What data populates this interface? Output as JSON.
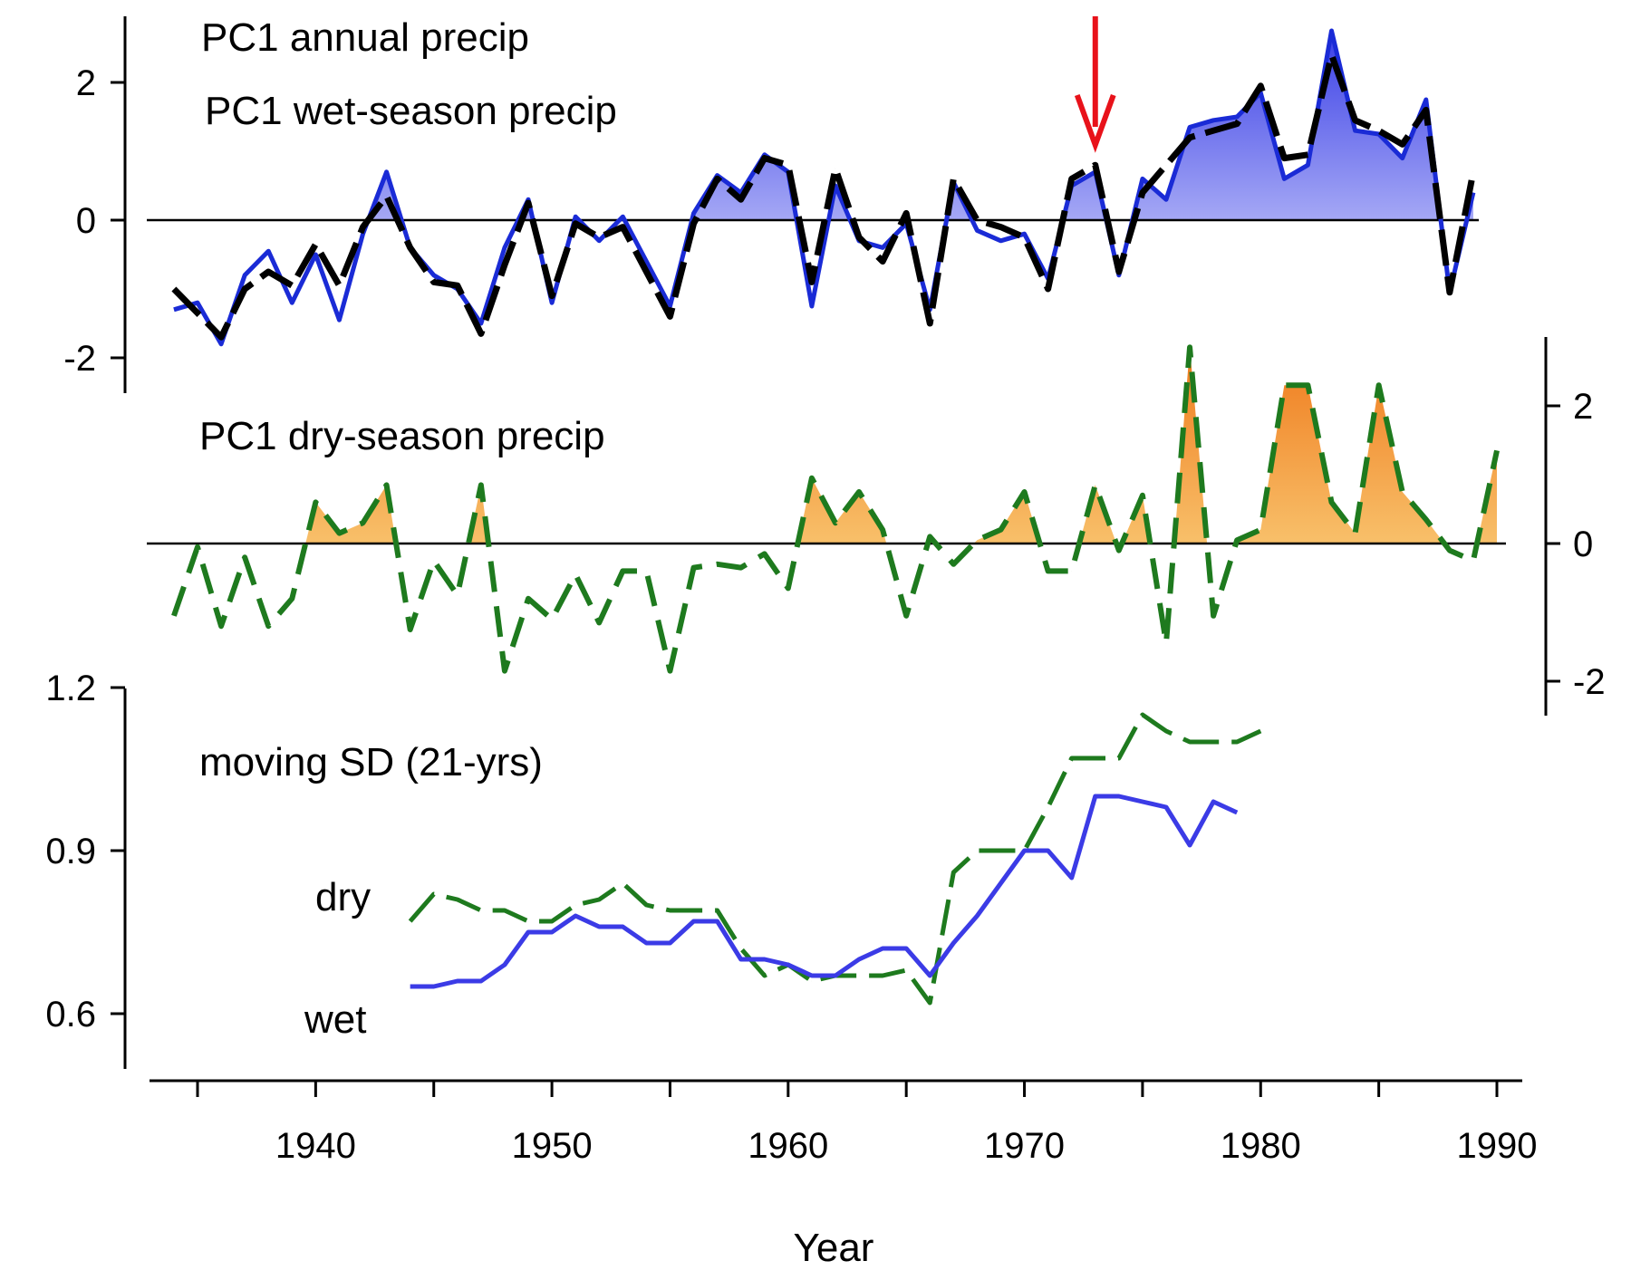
{
  "chart_data": [
    {
      "panel": "top",
      "type": "line",
      "title": "PC1 annual precip",
      "title_color": "#000000",
      "subtitle": "PC1 wet-season precip",
      "subtitle_color": "#1a3ccc",
      "left_axis_ticks": [
        -2,
        0,
        2
      ],
      "left_axis_tick_labels": [
        "-2",
        "0",
        "2"
      ],
      "ylim": [
        -2.4,
        2.9
      ],
      "zero_line": true,
      "fill_positive_series": "PC1 wet-season precip",
      "fill_color": "#3a3fe6",
      "marker": {
        "x": 1973,
        "direction": "down",
        "color": "#e8121a",
        "description": "red arrow"
      },
      "x": [
        1934,
        1935,
        1936,
        1937,
        1938,
        1939,
        1940,
        1941,
        1942,
        1943,
        1944,
        1945,
        1946,
        1947,
        1948,
        1949,
        1950,
        1951,
        1952,
        1953,
        1954,
        1955,
        1956,
        1957,
        1958,
        1959,
        1960,
        1961,
        1962,
        1963,
        1964,
        1965,
        1966,
        1967,
        1968,
        1969,
        1970,
        1971,
        1972,
        1973,
        1974,
        1975,
        1976,
        1977,
        1978,
        1979,
        1980,
        1981,
        1982,
        1983,
        1984,
        1985,
        1986,
        1987,
        1988,
        1989
      ],
      "series": [
        {
          "name": "PC1 wet-season precip",
          "color": "#1a2bd6",
          "style": "solid",
          "values": [
            -1.3,
            -1.2,
            -1.8,
            -0.8,
            -0.45,
            -1.2,
            -0.5,
            -1.45,
            -0.2,
            0.7,
            -0.4,
            -0.8,
            -1.0,
            -1.5,
            -0.4,
            0.3,
            -1.2,
            0.05,
            -0.3,
            0.05,
            -0.6,
            -1.25,
            0.1,
            0.65,
            0.4,
            0.95,
            0.7,
            -1.25,
            0.5,
            -0.3,
            -0.4,
            -0.05,
            -1.3,
            0.55,
            -0.15,
            -0.3,
            -0.2,
            -0.85,
            0.5,
            0.7,
            -0.8,
            0.6,
            0.3,
            1.35,
            1.45,
            1.5,
            1.85,
            0.6,
            0.8,
            2.75,
            1.3,
            1.25,
            0.9,
            1.75,
            -1.05,
            0.4
          ]
        },
        {
          "name": "PC1 annual precip",
          "color": "#000000",
          "style": "dashed",
          "values": [
            -1.0,
            -1.35,
            -1.7,
            -1.0,
            -0.75,
            -0.95,
            -0.35,
            -0.95,
            -0.1,
            0.35,
            -0.4,
            -0.9,
            -0.95,
            -1.65,
            -0.65,
            0.25,
            -1.1,
            -0.05,
            -0.25,
            -0.1,
            -0.75,
            -1.4,
            -0.05,
            0.6,
            0.3,
            0.9,
            0.8,
            -0.9,
            0.75,
            -0.25,
            -0.6,
            0.1,
            -1.5,
            0.6,
            0.0,
            -0.1,
            -0.25,
            -1.0,
            0.6,
            0.8,
            -0.75,
            0.4,
            0.8,
            1.2,
            1.3,
            1.4,
            1.95,
            0.9,
            0.95,
            2.4,
            1.45,
            1.3,
            1.1,
            1.6,
            -1.05,
            0.7
          ]
        }
      ]
    },
    {
      "panel": "middle",
      "type": "area",
      "title": "PC1 dry-season precip",
      "title_color": "#c56a12",
      "right_axis_ticks": [
        -2,
        0,
        2
      ],
      "right_axis_tick_labels": [
        "-2",
        "0",
        "2"
      ],
      "ylim": [
        -2.5,
        3.0
      ],
      "zero_line": true,
      "fill_positive_color": "#f5a23a",
      "x": [
        1934,
        1935,
        1936,
        1937,
        1938,
        1939,
        1940,
        1941,
        1942,
        1943,
        1944,
        1945,
        1946,
        1947,
        1948,
        1949,
        1950,
        1951,
        1952,
        1953,
        1954,
        1955,
        1956,
        1957,
        1958,
        1959,
        1960,
        1961,
        1962,
        1963,
        1964,
        1965,
        1966,
        1967,
        1968,
        1969,
        1970,
        1971,
        1972,
        1973,
        1974,
        1975,
        1976,
        1977,
        1978,
        1979,
        1980,
        1981,
        1982,
        1983,
        1984,
        1985,
        1986,
        1987,
        1988,
        1989,
        1990
      ],
      "series": [
        {
          "name": "PC1 dry-season precip",
          "color": "#1e7a1e",
          "style": "dashed",
          "values": [
            -1.05,
            -0.05,
            -1.2,
            -0.2,
            -1.2,
            -0.8,
            0.6,
            0.15,
            0.3,
            0.85,
            -1.25,
            -0.25,
            -0.75,
            0.85,
            -1.85,
            -0.8,
            -1.1,
            -0.45,
            -1.15,
            -0.4,
            -0.4,
            -1.85,
            -0.35,
            -0.3,
            -0.35,
            -0.15,
            -0.65,
            0.95,
            0.3,
            0.75,
            0.2,
            -1.05,
            0.1,
            -0.3,
            0.05,
            0.2,
            0.75,
            -0.4,
            -0.4,
            0.85,
            -0.1,
            0.7,
            -1.45,
            2.85,
            -1.05,
            0.05,
            0.2,
            2.3,
            2.3,
            0.6,
            0.15,
            2.3,
            0.75,
            0.35,
            -0.1,
            -0.25,
            1.35
          ]
        }
      ]
    },
    {
      "panel": "bottom",
      "type": "line",
      "title": "moving SD (21-yrs)",
      "xlabel": "Year",
      "left_axis_ticks": [
        0.6,
        0.9,
        1.2
      ],
      "left_axis_tick_labels": [
        "0.6",
        "0.9",
        "1.2"
      ],
      "ylim": [
        0.47,
        1.2
      ],
      "xlim": [
        1933,
        1991
      ],
      "x_ticks": [
        1935,
        1940,
        1945,
        1950,
        1955,
        1960,
        1965,
        1970,
        1975,
        1980,
        1985,
        1990
      ],
      "x_tick_labels": [
        "1940",
        "1950",
        "1960",
        "1970",
        "1980",
        "1990"
      ],
      "x_tick_label_values": [
        1940,
        1950,
        1960,
        1970,
        1980,
        1990
      ],
      "series_labels": {
        "dry": "dry",
        "wet": "wet"
      },
      "series": [
        {
          "name": "dry",
          "color": "#1e7a1e",
          "style": "dashed",
          "x": [
            1944,
            1945,
            1946,
            1947,
            1948,
            1949,
            1950,
            1951,
            1952,
            1953,
            1954,
            1955,
            1956,
            1957,
            1958,
            1959,
            1960,
            1961,
            1962,
            1963,
            1964,
            1965,
            1966,
            1967,
            1968,
            1969,
            1970,
            1971,
            1972,
            1973,
            1974,
            1975,
            1976,
            1977,
            1978,
            1979,
            1980
          ],
          "values": [
            0.77,
            0.82,
            0.81,
            0.79,
            0.79,
            0.77,
            0.77,
            0.8,
            0.81,
            0.84,
            0.8,
            0.79,
            0.79,
            0.79,
            0.72,
            0.67,
            0.69,
            0.66,
            0.67,
            0.67,
            0.67,
            0.68,
            0.62,
            0.86,
            0.9,
            0.9,
            0.9,
            0.98,
            1.07,
            1.07,
            1.07,
            1.15,
            1.12,
            1.1,
            1.1,
            1.1,
            1.12
          ]
        },
        {
          "name": "wet",
          "color": "#3b3be6",
          "style": "solid",
          "x": [
            1944,
            1945,
            1946,
            1947,
            1948,
            1949,
            1950,
            1951,
            1952,
            1953,
            1954,
            1955,
            1956,
            1957,
            1958,
            1959,
            1960,
            1961,
            1962,
            1963,
            1964,
            1965,
            1966,
            1967,
            1968,
            1969,
            1970,
            1971,
            1972,
            1973,
            1974,
            1975,
            1976,
            1977,
            1978,
            1979
          ],
          "values": [
            0.65,
            0.65,
            0.66,
            0.66,
            0.69,
            0.75,
            0.75,
            0.78,
            0.76,
            0.76,
            0.73,
            0.73,
            0.77,
            0.77,
            0.7,
            0.7,
            0.69,
            0.67,
            0.67,
            0.7,
            0.72,
            0.72,
            0.67,
            0.73,
            0.78,
            0.84,
            0.9,
            0.9,
            0.85,
            1.0,
            1.0,
            0.99,
            0.98,
            0.91,
            0.99,
            0.97
          ]
        }
      ]
    }
  ]
}
